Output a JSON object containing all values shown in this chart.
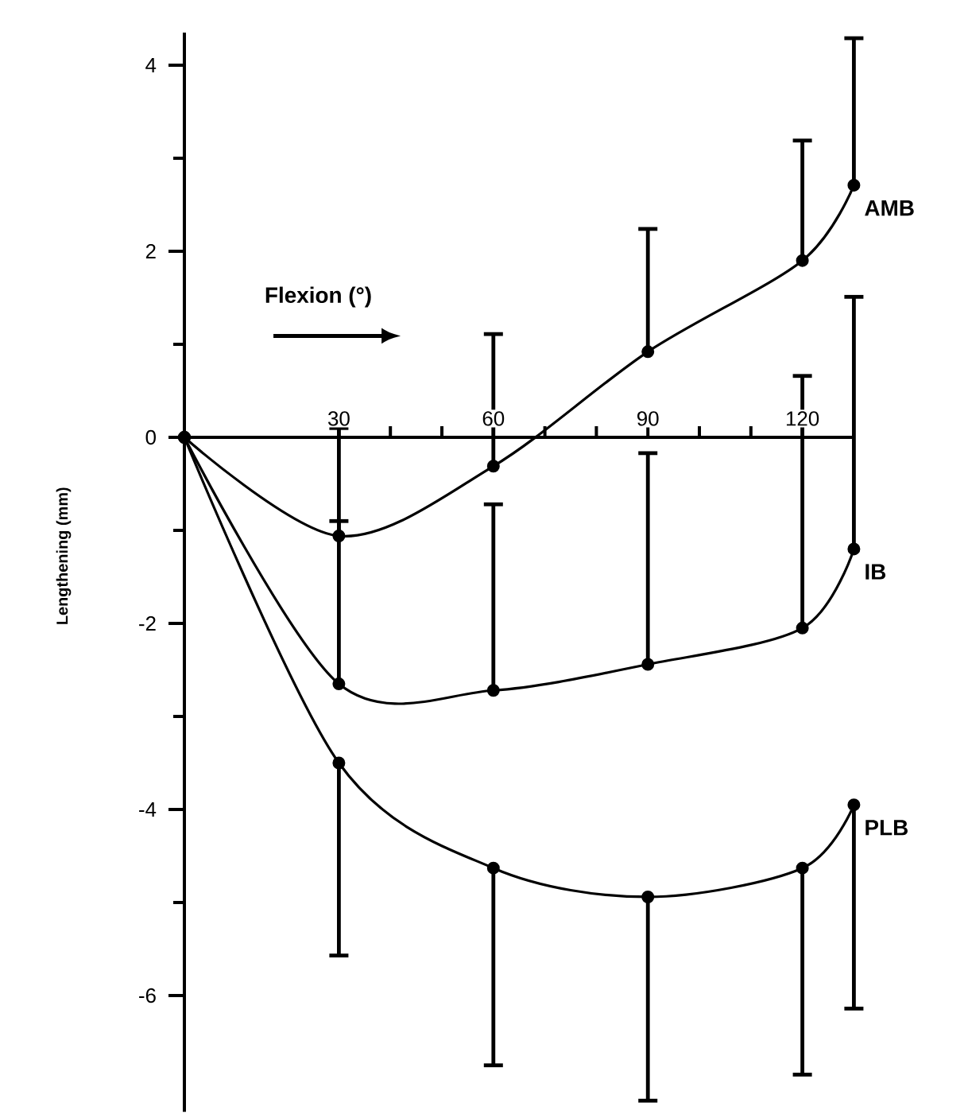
{
  "chart_data": {
    "type": "line",
    "xlabel": "Flexion (°)",
    "ylabel": "Lengthening (mm)",
    "x": [
      0,
      30,
      60,
      90,
      120,
      130
    ],
    "xlim": [
      0,
      130
    ],
    "ylim": [
      -7.25,
      4.35
    ],
    "xticks": [
      30,
      60,
      90,
      120
    ],
    "yticks": [
      -6,
      -4,
      -2,
      0,
      2,
      4
    ],
    "marker": "circle",
    "line_style": "solid",
    "grid": false,
    "series": [
      {
        "name": "AMB",
        "color": "#000000",
        "values": [
          0,
          -1.06,
          -0.31,
          0.92,
          1.9,
          2.71
        ],
        "errors": [
          null,
          [
            -1.06,
            0.1
          ],
          [
            -0.31,
            1.11
          ],
          [
            0.92,
            2.24
          ],
          [
            1.9,
            3.19
          ],
          [
            2.71,
            4.29
          ]
        ]
      },
      {
        "name": "IB",
        "color": "#000000",
        "values": [
          0,
          -2.65,
          -2.72,
          -2.44,
          -2.05,
          -1.2
        ],
        "errors": [
          null,
          [
            -2.65,
            -0.9
          ],
          [
            -2.72,
            -0.72
          ],
          [
            -2.44,
            -0.17
          ],
          [
            -2.05,
            0.66
          ],
          [
            -1.2,
            1.51
          ]
        ]
      },
      {
        "name": "PLB",
        "color": "#000000",
        "values": [
          0,
          -3.5,
          -4.63,
          -4.94,
          -4.63,
          -3.95
        ],
        "errors": [
          null,
          [
            -5.57,
            -3.5
          ],
          [
            -6.75,
            -4.63
          ],
          [
            -7.13,
            -4.94
          ],
          [
            -6.85,
            -4.63
          ],
          [
            -6.14,
            -3.95
          ]
        ]
      }
    ]
  }
}
